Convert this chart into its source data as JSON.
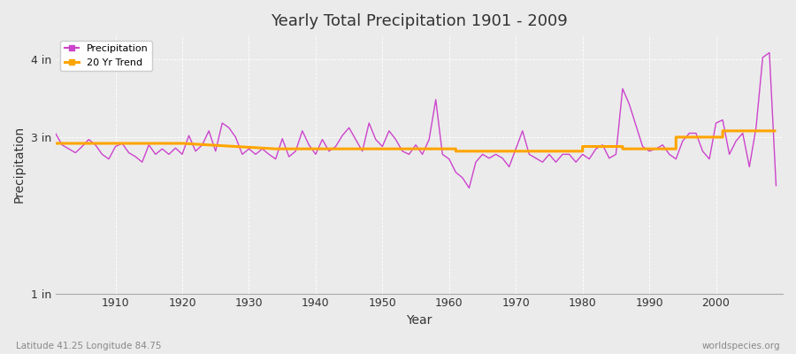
{
  "title": "Yearly Total Precipitation 1901 - 2009",
  "ylabel": "Precipitation",
  "xlabel": "Year",
  "footer_left": "Latitude 41.25 Longitude 84.75",
  "footer_right": "worldspecies.org",
  "legend_labels": [
    "Precipitation",
    "20 Yr Trend"
  ],
  "precip_color": "#cc44cc",
  "trend_color": "#ffa500",
  "background_color": "#ebebeb",
  "plot_bg_color": "#ebebeb",
  "grid_color": "#ffffff",
  "ylim": [
    1.0,
    4.3
  ],
  "ytick_positions": [
    1.0,
    3.0,
    4.0
  ],
  "ytick_labels": [
    "1 in",
    "3 in",
    "4 in"
  ],
  "xlim": [
    1901,
    2010
  ],
  "xticks": [
    1910,
    1920,
    1930,
    1940,
    1950,
    1960,
    1970,
    1980,
    1990,
    2000
  ],
  "years": [
    1901,
    1902,
    1903,
    1904,
    1905,
    1906,
    1907,
    1908,
    1909,
    1910,
    1911,
    1912,
    1913,
    1914,
    1915,
    1916,
    1917,
    1918,
    1919,
    1920,
    1921,
    1922,
    1923,
    1924,
    1925,
    1926,
    1927,
    1928,
    1929,
    1930,
    1931,
    1932,
    1933,
    1934,
    1935,
    1936,
    1937,
    1938,
    1939,
    1940,
    1941,
    1942,
    1943,
    1944,
    1945,
    1946,
    1947,
    1948,
    1949,
    1950,
    1951,
    1952,
    1953,
    1954,
    1955,
    1956,
    1957,
    1958,
    1959,
    1960,
    1961,
    1962,
    1963,
    1964,
    1965,
    1966,
    1967,
    1968,
    1969,
    1970,
    1971,
    1972,
    1973,
    1974,
    1975,
    1976,
    1977,
    1978,
    1979,
    1980,
    1981,
    1982,
    1983,
    1984,
    1985,
    1986,
    1987,
    1988,
    1989,
    1990,
    1991,
    1992,
    1993,
    1994,
    1995,
    1996,
    1997,
    1998,
    1999,
    2000,
    2001,
    2002,
    2003,
    2004,
    2005,
    2006,
    2007,
    2008,
    2009
  ],
  "precip": [
    3.05,
    2.9,
    2.85,
    2.8,
    2.88,
    2.97,
    2.9,
    2.78,
    2.72,
    2.88,
    2.92,
    2.8,
    2.75,
    2.68,
    2.9,
    2.78,
    2.85,
    2.78,
    2.86,
    2.78,
    3.02,
    2.82,
    2.9,
    3.08,
    2.82,
    3.18,
    3.12,
    3.0,
    2.78,
    2.85,
    2.78,
    2.85,
    2.78,
    2.72,
    2.98,
    2.75,
    2.82,
    3.08,
    2.9,
    2.78,
    2.97,
    2.82,
    2.88,
    3.02,
    3.12,
    2.97,
    2.82,
    3.18,
    2.97,
    2.88,
    3.08,
    2.97,
    2.82,
    2.78,
    2.9,
    2.78,
    2.97,
    3.48,
    2.78,
    2.72,
    2.55,
    2.48,
    2.35,
    2.68,
    2.78,
    2.73,
    2.78,
    2.73,
    2.62,
    2.85,
    3.08,
    2.78,
    2.73,
    2.68,
    2.78,
    2.68,
    2.78,
    2.78,
    2.68,
    2.78,
    2.72,
    2.85,
    2.9,
    2.73,
    2.78,
    3.62,
    3.42,
    3.15,
    2.88,
    2.82,
    2.85,
    2.9,
    2.78,
    2.72,
    2.95,
    3.05,
    3.05,
    2.82,
    2.72,
    3.18,
    3.22,
    2.78,
    2.95,
    3.05,
    2.62,
    3.12,
    4.02,
    4.08,
    2.38
  ],
  "trend_years": [
    1901,
    1920,
    1920,
    1934,
    1934,
    1961,
    1961,
    1980,
    1980,
    1986,
    1986,
    1994,
    1994,
    2001,
    2001,
    2009
  ],
  "trend_vals": [
    2.92,
    2.92,
    2.92,
    2.85,
    2.85,
    2.85,
    2.82,
    2.82,
    2.88,
    2.88,
    2.85,
    2.85,
    3.0,
    3.0,
    3.08,
    3.08
  ]
}
